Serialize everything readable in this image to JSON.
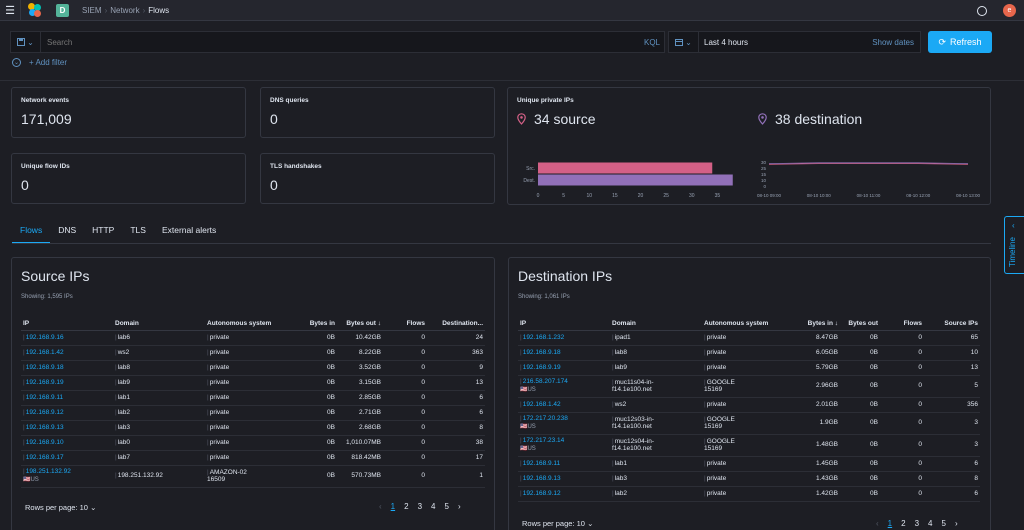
{
  "topbar": {
    "space_initial": "D",
    "breadcrumbs": [
      "SIEM",
      "Network",
      "Flows"
    ],
    "avatar_initial": "e"
  },
  "query": {
    "search_placeholder": "Search",
    "kql_label": "KQL",
    "date_range": "Last 4 hours",
    "show_dates": "Show dates",
    "refresh_label": "Refresh",
    "add_filter": "+ Add filter"
  },
  "stats": {
    "network_events": {
      "label": "Network events",
      "value": "171,009"
    },
    "dns_queries": {
      "label": "DNS queries",
      "value": "0"
    },
    "unique_flow_ids": {
      "label": "Unique flow IDs",
      "value": "0"
    },
    "tls_handshakes": {
      "label": "TLS handshakes",
      "value": "0"
    }
  },
  "unique_ips": {
    "title": "Unique private IPs",
    "source": "34 source",
    "destination": "38 destination"
  },
  "chart_data": [
    {
      "type": "bar",
      "orientation": "horizontal",
      "categories": [
        "Src.",
        "Dest."
      ],
      "values": [
        34,
        38
      ],
      "colors": [
        "#d36086",
        "#9170b8"
      ],
      "xlim": [
        0,
        40
      ],
      "xticks": [
        0,
        5,
        10,
        15,
        20,
        25,
        30,
        35
      ]
    },
    {
      "type": "line",
      "x": [
        "08-10 09:00",
        "08-10 10:00",
        "08-10 11:00",
        "08-10 12:00",
        "08-10 13:00"
      ],
      "series": [
        {
          "values": [
            27,
            28,
            28,
            28,
            27
          ],
          "color": "#d36086"
        },
        {
          "values": [
            28,
            29,
            29,
            29,
            28
          ],
          "color": "#9170b8"
        }
      ],
      "yticks": [
        0,
        10,
        15,
        25,
        30
      ],
      "ylim": [
        0,
        30
      ]
    }
  ],
  "tabs": [
    "Flows",
    "DNS",
    "HTTP",
    "TLS",
    "External alerts"
  ],
  "timeline_label": "Timeline",
  "source_table": {
    "title": "Source IPs",
    "subtitle": "Showing: 1,595 IPs",
    "columns": [
      "IP",
      "Domain",
      "Autonomous system",
      "Bytes in",
      "Bytes out ↓",
      "Flows",
      "Destination..."
    ],
    "rows": [
      {
        "ip": "192.168.9.16",
        "domain": "lab6",
        "as": "private",
        "bin": "0B",
        "bout": "10.42GB",
        "flows": "0",
        "peers": "24"
      },
      {
        "ip": "192.168.1.42",
        "domain": "ws2",
        "as": "private",
        "bin": "0B",
        "bout": "8.22GB",
        "flows": "0",
        "peers": "363"
      },
      {
        "ip": "192.168.9.18",
        "domain": "lab8",
        "as": "private",
        "bin": "0B",
        "bout": "3.52GB",
        "flows": "0",
        "peers": "9"
      },
      {
        "ip": "192.168.9.19",
        "domain": "lab9",
        "as": "private",
        "bin": "0B",
        "bout": "3.15GB",
        "flows": "0",
        "peers": "13"
      },
      {
        "ip": "192.168.9.11",
        "domain": "lab1",
        "as": "private",
        "bin": "0B",
        "bout": "2.85GB",
        "flows": "0",
        "peers": "6"
      },
      {
        "ip": "192.168.9.12",
        "domain": "lab2",
        "as": "private",
        "bin": "0B",
        "bout": "2.71GB",
        "flows": "0",
        "peers": "6"
      },
      {
        "ip": "192.168.9.13",
        "domain": "lab3",
        "as": "private",
        "bin": "0B",
        "bout": "2.68GB",
        "flows": "0",
        "peers": "8"
      },
      {
        "ip": "192.168.9.10",
        "domain": "lab0",
        "as": "private",
        "bin": "0B",
        "bout": "1,010.07MB",
        "flows": "0",
        "peers": "38"
      },
      {
        "ip": "192.168.9.17",
        "domain": "lab7",
        "as": "private",
        "bin": "0B",
        "bout": "818.42MB",
        "flows": "0",
        "peers": "17"
      },
      {
        "ip": "198.251.132.92",
        "flag": "🇺🇸US",
        "domain": "198.251.132.92",
        "as": "AMAZON-02",
        "as2": "16509",
        "bin": "0B",
        "bout": "570.73MB",
        "flows": "0",
        "peers": "1"
      }
    ],
    "rows_per_page": "Rows per page: 10",
    "pages": [
      "1",
      "2",
      "3",
      "4",
      "5"
    ]
  },
  "dest_table": {
    "title": "Destination IPs",
    "subtitle": "Showing: 1,061 IPs",
    "columns": [
      "IP",
      "Domain",
      "Autonomous system",
      "Bytes in ↓",
      "Bytes out",
      "Flows",
      "Source IPs"
    ],
    "rows": [
      {
        "ip": "192.168.1.232",
        "domain": "ipad1",
        "as": "private",
        "bin": "8.47GB",
        "bout": "0B",
        "flows": "0",
        "peers": "65"
      },
      {
        "ip": "192.168.9.18",
        "domain": "lab8",
        "as": "private",
        "bin": "6.05GB",
        "bout": "0B",
        "flows": "0",
        "peers": "10"
      },
      {
        "ip": "192.168.9.19",
        "domain": "lab9",
        "as": "private",
        "bin": "5.79GB",
        "bout": "0B",
        "flows": "0",
        "peers": "13"
      },
      {
        "ip": "216.58.207.174",
        "flag": "🇺🇸US",
        "domain": "muc11s04-in-",
        "domain2": "f14.1e100.net",
        "as": "GOOGLE",
        "as2": "15169",
        "bin": "2.96GB",
        "bout": "0B",
        "flows": "0",
        "peers": "5"
      },
      {
        "ip": "192.168.1.42",
        "domain": "ws2",
        "as": "private",
        "bin": "2.01GB",
        "bout": "0B",
        "flows": "0",
        "peers": "356"
      },
      {
        "ip": "172.217.20.238",
        "flag": "🇺🇸US",
        "domain": "muc12s03-in-",
        "domain2": "f14.1e100.net",
        "as": "GOOGLE",
        "as2": "15169",
        "bin": "1.9GB",
        "bout": "0B",
        "flows": "0",
        "peers": "3"
      },
      {
        "ip": "172.217.23.14",
        "flag": "🇺🇸US",
        "domain": "muc12s04-in-",
        "domain2": "f14.1e100.net",
        "as": "GOOGLE",
        "as2": "15169",
        "bin": "1.48GB",
        "bout": "0B",
        "flows": "0",
        "peers": "3"
      },
      {
        "ip": "192.168.9.11",
        "domain": "lab1",
        "as": "private",
        "bin": "1.45GB",
        "bout": "0B",
        "flows": "0",
        "peers": "6"
      },
      {
        "ip": "192.168.9.13",
        "domain": "lab3",
        "as": "private",
        "bin": "1.43GB",
        "bout": "0B",
        "flows": "0",
        "peers": "8"
      },
      {
        "ip": "192.168.9.12",
        "domain": "lab2",
        "as": "private",
        "bin": "1.42GB",
        "bout": "0B",
        "flows": "0",
        "peers": "6"
      }
    ],
    "rows_per_page": "Rows per page: 10",
    "pages": [
      "1",
      "2",
      "3",
      "4",
      "5"
    ]
  }
}
